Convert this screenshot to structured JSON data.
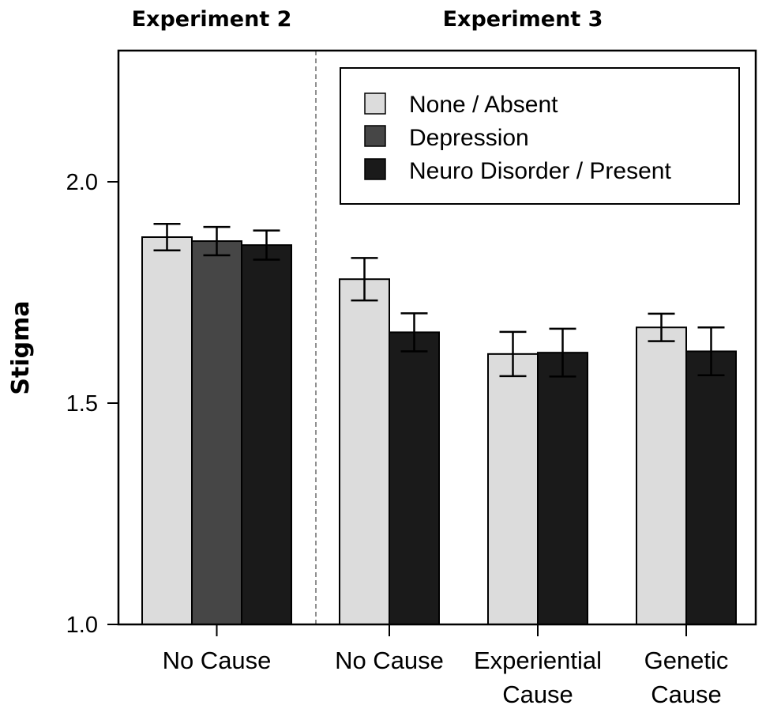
{
  "chart_data": {
    "type": "bar",
    "ylabel": "Stigma",
    "ylim": [
      1.0,
      2.25
    ],
    "yticks": [
      "1.0",
      "1.5",
      "2.0"
    ],
    "legend": {
      "placement": "top-right",
      "entries": [
        {
          "label": "None / Absent",
          "color": "#dcdcdc"
        },
        {
          "label": "Depression",
          "color": "#464646"
        },
        {
          "label": "Neuro Disorder / Present",
          "color": "#1a1a1a"
        }
      ]
    },
    "panels": [
      {
        "title": "Experiment 2",
        "groups": [
          {
            "category": [
              "No Cause"
            ],
            "bars": [
              {
                "series": "None / Absent",
                "value": 1.875,
                "err": 0.03
              },
              {
                "series": "Depression",
                "value": 1.866,
                "err": 0.032
              },
              {
                "series": "Neuro Disorder / Present",
                "value": 1.857,
                "err": 0.033
              }
            ]
          }
        ]
      },
      {
        "title": "Experiment 3",
        "groups": [
          {
            "category": [
              "No Cause"
            ],
            "bars": [
              {
                "series": "None / Absent",
                "value": 1.78,
                "err": 0.048
              },
              {
                "series": "Neuro Disorder / Present",
                "value": 1.66,
                "err": 0.043
              }
            ]
          },
          {
            "category": [
              "Experiential",
              "Cause"
            ],
            "bars": [
              {
                "series": "None / Absent",
                "value": 1.611,
                "err": 0.05
              },
              {
                "series": "Neuro Disorder / Present",
                "value": 1.614,
                "err": 0.054
              }
            ]
          },
          {
            "category": [
              "Genetic",
              "Cause"
            ],
            "bars": [
              {
                "series": "None / Absent",
                "value": 1.671,
                "err": 0.031
              },
              {
                "series": "Neuro Disorder / Present",
                "value": 1.617,
                "err": 0.054
              }
            ]
          }
        ]
      }
    ]
  }
}
